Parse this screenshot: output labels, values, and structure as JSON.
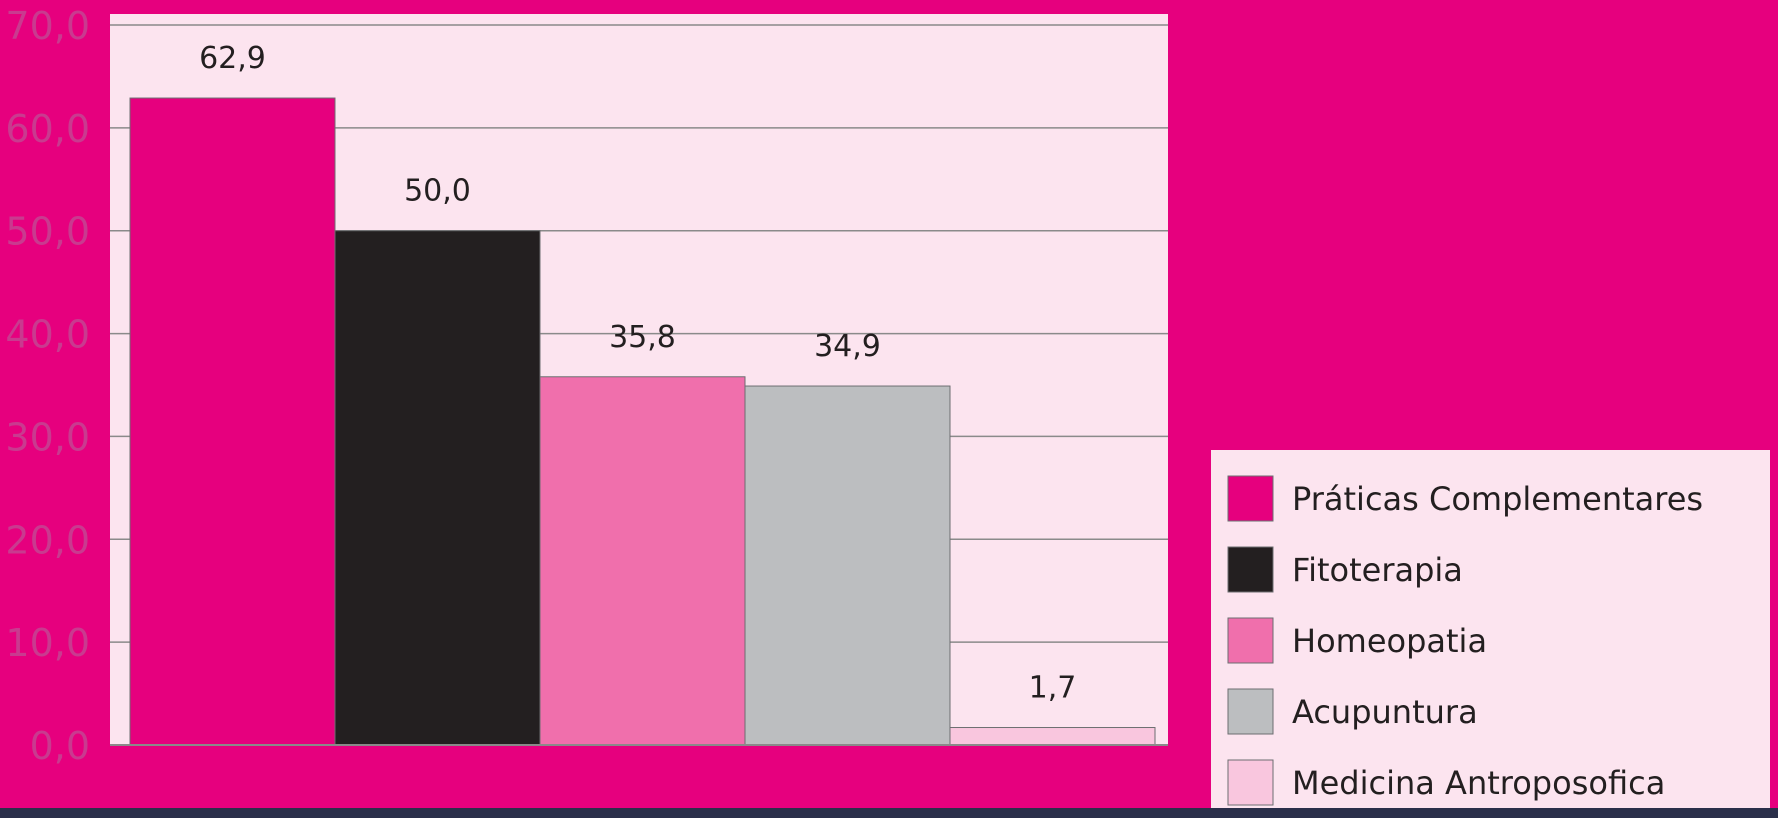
{
  "colors": {
    "background": "#e6007e",
    "plot_area": "#fce4ef",
    "grid": "#8a8a8a",
    "axis_tick_text": "#c93a8f",
    "value_text": "#231f20"
  },
  "chart_data": {
    "type": "bar",
    "title": "",
    "xlabel": "",
    "ylabel": "",
    "ylim": [
      0,
      70
    ],
    "y_ticks": [
      "0,0",
      "10,0",
      "20,0",
      "30,0",
      "40,0",
      "50,0",
      "60,0",
      "70,0"
    ],
    "grid": true,
    "legend_position": "bottom-right",
    "series": [
      {
        "name": "Práticas Complementares",
        "value": 62.9,
        "label": "62,9",
        "color": "#e6007e"
      },
      {
        "name": "Fitoterapia",
        "value": 50.0,
        "label": "50,0",
        "color": "#231f20"
      },
      {
        "name": "Homeopatia",
        "value": 35.8,
        "label": "35,8",
        "color": "#f06fac"
      },
      {
        "name": "Acupuntura",
        "value": 34.9,
        "label": "34,9",
        "color": "#bcbec0"
      },
      {
        "name": "Medicina Antroposofica",
        "value": 1.7,
        "label": "1,7",
        "color": "#f9c6de"
      }
    ]
  }
}
